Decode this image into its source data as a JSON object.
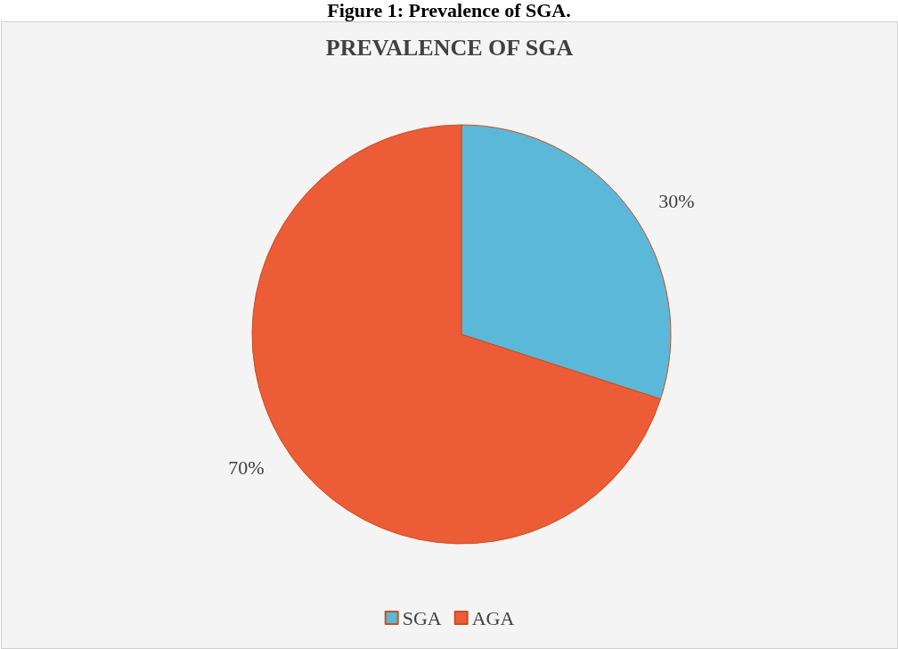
{
  "chart_data": {
    "type": "pie",
    "title": "PREVALENCE OF SGA",
    "annotations": [
      "Figure 1: Prevalence of SGA."
    ],
    "categories": [
      "SGA",
      "AGA"
    ],
    "values": [
      30,
      70
    ],
    "colors": [
      "#5bb8d8",
      "#ec5c37"
    ],
    "value_labels": [
      "30%",
      "70%"
    ],
    "legend": "bottom"
  }
}
